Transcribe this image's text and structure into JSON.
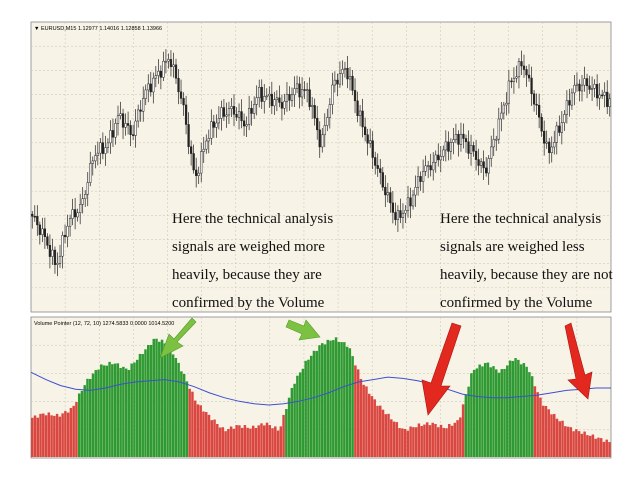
{
  "price_pane": {
    "title": "▼ EURUSD,M15  1.12977 1.14016 1.12858 1.13966",
    "symbol": "EURUSD",
    "timeframe": "M15",
    "ohlc": {
      "open": 1.12977,
      "high": 1.14016,
      "low": 1.12858,
      "close": 1.13966
    }
  },
  "indicator_pane": {
    "title": "Volume Pointer (12, 72, 10) 1274.5833 0.0000 1014.5200",
    "name": "Volume Pointer",
    "params": [
      12,
      72,
      10
    ],
    "values": [
      1274.5833,
      0.0,
      1014.52
    ]
  },
  "annotations": {
    "left_note": [
      "Here the technical analysis",
      "signals are weighed more",
      "heavily, because they are",
      "confirmed by the Volume"
    ],
    "right_note": [
      "Here the technical analysis",
      "signals are weighed less",
      "heavily, because they are not",
      "confirmed by the Volume"
    ]
  },
  "colors": {
    "background": "#f8f3e7",
    "grid": "#c9c2b2",
    "candle": "#222222",
    "volume_up": "#2f9a32",
    "volume_down": "#d94740",
    "ma_line": "#3c4fd0",
    "arrow_green": "#7cc242",
    "arrow_red": "#e2281f"
  },
  "chart_data": [
    {
      "type": "line",
      "series": [
        {
          "name": "EURUSD,M15",
          "values": [
            0.32,
            0.24,
            0.12,
            0.3,
            0.35,
            0.55,
            0.58,
            0.7,
            0.62,
            0.78,
            0.85,
            0.92,
            0.75,
            0.45,
            0.62,
            0.7,
            0.72,
            0.66,
            0.78,
            0.76,
            0.74,
            0.8,
            0.78,
            0.58,
            0.82,
            0.88,
            0.7,
            0.56,
            0.42,
            0.3,
            0.36,
            0.48,
            0.52,
            0.58,
            0.62,
            0.56,
            0.48,
            0.65,
            0.82,
            0.9,
            0.74,
            0.55,
            0.66,
            0.8,
            0.82,
            0.78,
            0.75
          ]
        }
      ]
    },
    {
      "type": "bar",
      "series": [
        {
          "name": "Volume Pointer",
          "values": [
            0.32,
            0.36,
            0.34,
            0.4,
            0.62,
            0.75,
            0.78,
            0.72,
            0.85,
            0.98,
            0.93,
            0.7,
            0.45,
            0.33,
            0.22,
            0.26,
            0.24,
            0.28,
            0.22,
            0.6,
            0.8,
            0.93,
            0.98,
            0.92,
            0.62,
            0.45,
            0.33,
            0.22,
            0.26,
            0.28,
            0.24,
            0.3,
            0.72,
            0.78,
            0.7,
            0.82,
            0.74,
            0.45,
            0.33,
            0.24,
            0.2,
            0.16,
            0.12
          ],
          "colors": [
            "down",
            "down",
            "down",
            "down",
            "up",
            "up",
            "up",
            "up",
            "up",
            "up",
            "up",
            "up",
            "down",
            "down",
            "down",
            "down",
            "down",
            "down",
            "down",
            "up",
            "up",
            "up",
            "up",
            "up",
            "down",
            "down",
            "down",
            "down",
            "down",
            "down",
            "down",
            "down",
            "up",
            "up",
            "up",
            "up",
            "up",
            "down",
            "down",
            "down",
            "down",
            "down",
            "down"
          ]
        },
        {
          "name": "MA",
          "values": [
            0.7,
            0.64,
            0.59,
            0.56,
            0.55,
            0.57,
            0.6,
            0.62,
            0.63,
            0.64,
            0.62,
            0.58,
            0.53,
            0.49,
            0.46,
            0.44,
            0.43,
            0.44,
            0.46,
            0.49,
            0.53,
            0.58,
            0.62,
            0.64,
            0.66,
            0.65,
            0.63,
            0.6,
            0.56,
            0.52,
            0.5,
            0.49,
            0.49,
            0.5,
            0.51,
            0.53,
            0.55,
            0.56,
            0.57,
            0.57
          ]
        }
      ]
    }
  ]
}
